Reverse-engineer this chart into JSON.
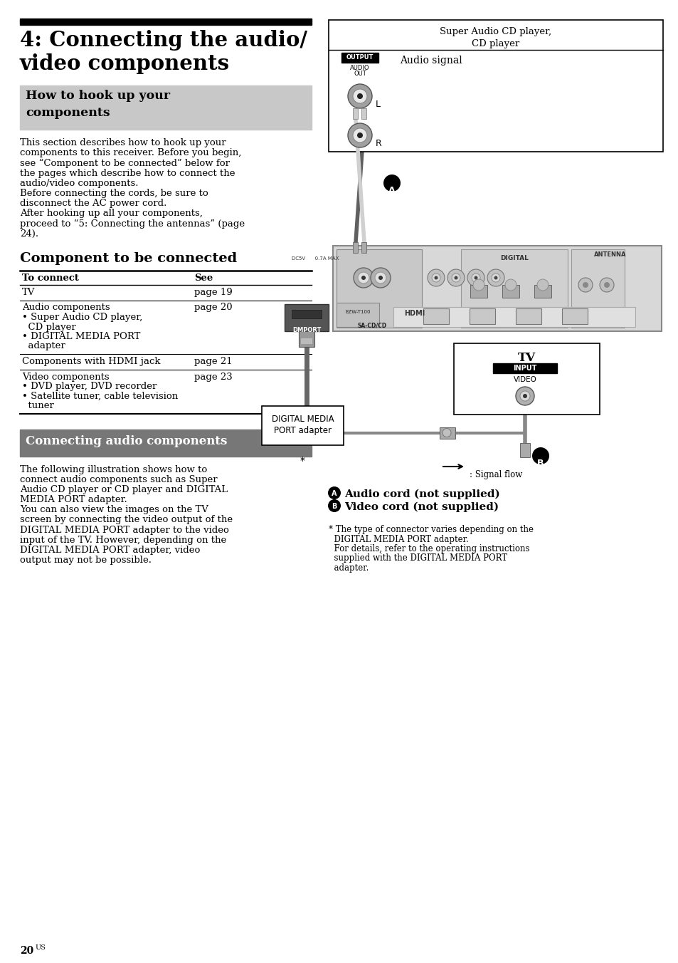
{
  "page_bg": "#ffffff",
  "title_bar_color": "#000000",
  "title_text_line1": "4: Connecting the audio/",
  "title_text_line2": "video components",
  "section1_bg": "#c8c8c8",
  "section1_title_line1": "How to hook up your",
  "section1_title_line2": "components",
  "body1": [
    "This section describes how to hook up your",
    "components to this receiver. Before you begin,",
    "see “Component to be connected” below for",
    "the pages which describe how to connect the",
    "audio/video components.",
    "Before connecting the cords, be sure to",
    "disconnect the AC power cord.",
    "After hooking up all your components,",
    "proceed to “5: Connecting the antennas” (page",
    "24)."
  ],
  "section2_title": "Component to be connected",
  "table_header_col1": "To connect",
  "table_header_col2": "See",
  "table_rows": [
    {
      "col1": [
        "TV"
      ],
      "col2": "page 19"
    },
    {
      "col1": [
        "Audio components",
        "• Super Audio CD player,",
        "  CD player",
        "• DIGITAL MEDIA PORT",
        "  adapter"
      ],
      "col2": "page 20"
    },
    {
      "col1": [
        "Components with HDMI jack"
      ],
      "col2": "page 21"
    },
    {
      "col1": [
        "Video components",
        "• DVD player, DVD recorder",
        "• Satellite tuner, cable television",
        "  tuner"
      ],
      "col2": "page 23"
    }
  ],
  "section3_bg": "#777777",
  "section3_title": "Connecting audio components",
  "body3": [
    "The following illustration shows how to",
    "connect audio components such as Super",
    "Audio CD player or CD player and DIGITAL",
    "MEDIA PORT adapter.",
    "You can also view the images on the TV",
    "screen by connecting the video output of the",
    "DIGITAL MEDIA PORT adapter to the video",
    "input of the TV. However, depending on the",
    "DIGITAL MEDIA PORT adapter, video",
    "output may not be possible."
  ],
  "page_number": "20",
  "page_superscript": "US",
  "diag_sacd_title": "Super Audio CD player,\nCD player",
  "diag_audio_signal": "Audio signal",
  "diag_output_label": "OUTPUT",
  "diag_audio_out_line1": "AUDIO",
  "diag_audio_out_line2": "OUT",
  "diag_L": "L",
  "diag_R": "R",
  "diag_digital": "DIGITAL",
  "diag_antenna": "ANTENNA",
  "diag_ezw": "EZW-T100",
  "diag_sacdcd": "SA-CD/CD",
  "diag_dmport_label": "DMPORT",
  "diag_dcsv": "DC5V      0.7A MAX",
  "diag_hdmi": "HDMI",
  "diag_tv_title": "TV",
  "diag_tv_input": "INPUT",
  "diag_tv_video": "VIDEO",
  "diag_dmp_box": "DIGITAL MEDIA\nPORT adapter",
  "diag_star": "*",
  "diag_signal_flow": ": Signal flow",
  "legend_A": "Audio cord (not supplied)",
  "legend_B": "Video cord (not supplied)",
  "footnote_lines": [
    "* The type of connector varies depending on the",
    "  DIGITAL MEDIA PORT adapter.",
    "  For details, refer to the operating instructions",
    "  supplied with the DIGITAL MEDIA PORT",
    "  adapter."
  ]
}
